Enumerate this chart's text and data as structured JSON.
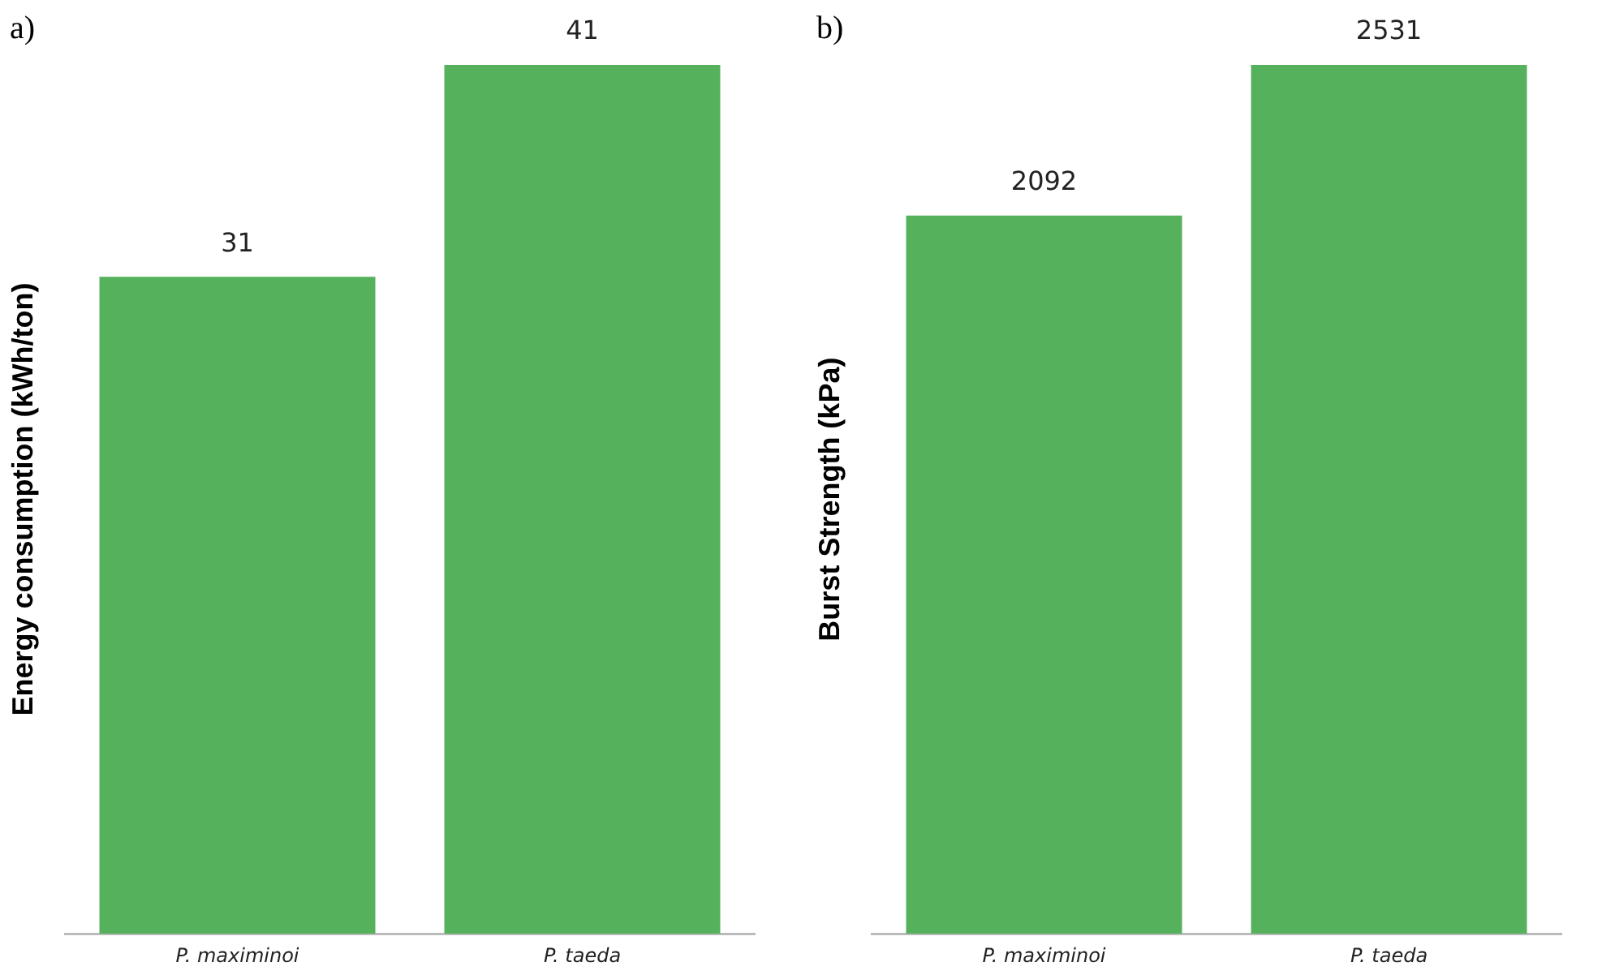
{
  "chart_data": [
    {
      "type": "bar",
      "title": "a)",
      "ylabel": "Energy consumption (kWh/ton)",
      "categories": [
        "P. maximinoi",
        "P. taeda"
      ],
      "values": [
        31,
        41
      ],
      "colors": [
        "#55b15b",
        "#55b15b"
      ],
      "ylim": [
        0,
        41
      ],
      "tick_labels": "x",
      "data_labels": true,
      "grid": false,
      "legend": false
    },
    {
      "type": "bar",
      "title": "b)",
      "ylabel": "Burst Strength (kPa)",
      "categories": [
        "P. maximinoi",
        "P. taeda"
      ],
      "values": [
        2092,
        2531
      ],
      "colors": [
        "#55b15b",
        "#55b15b"
      ],
      "ylim": [
        0,
        2531
      ],
      "tick_labels": "x",
      "data_labels": true,
      "grid": false,
      "legend": false
    }
  ]
}
